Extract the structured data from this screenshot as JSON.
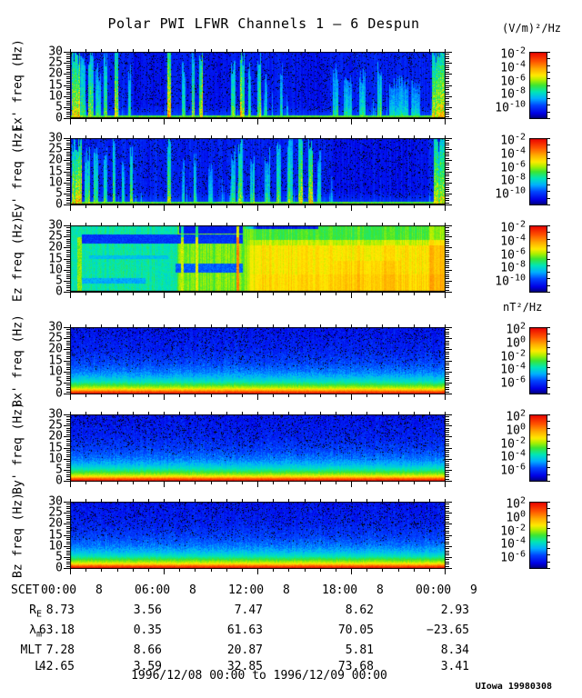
{
  "chart_data": {
    "type": "heatmap",
    "title": "Polar PWI LFWR Channels 1 — 6 Despun",
    "colorbar_base": "10",
    "units_electric": "(V/m)²/Hz",
    "units_magnetic": "nT²/Hz",
    "freq_axis": {
      "unit": "Hz",
      "range": [
        0,
        30
      ],
      "major_ticks": [
        30,
        25,
        20,
        15,
        10,
        5,
        0
      ],
      "minor_step": 1
    },
    "time_axis": {
      "label": "SCET",
      "hours_range": [
        0,
        24
      ],
      "major_step_hours": 6,
      "minor_step_hours": 1,
      "tick_labels": [
        {
          "time": "00:00",
          "day": "8"
        },
        {
          "time": "06:00",
          "day": "8"
        },
        {
          "time": "12:00",
          "day": "8"
        },
        {
          "time": "18:00",
          "day": "8"
        },
        {
          "time": "00:00",
          "day": "9"
        }
      ]
    },
    "b_profile": [
      [
        0,
        0.96
      ],
      [
        1,
        0.88
      ],
      [
        1.8,
        0.72
      ],
      [
        2.6,
        0.6
      ],
      [
        4,
        0.5
      ],
      [
        5.5,
        0.4
      ],
      [
        7.5,
        0.32
      ],
      [
        10,
        0.25
      ],
      [
        14,
        0.19
      ],
      [
        20,
        0.14
      ],
      [
        30,
        0.11
      ]
    ],
    "panels": [
      {
        "id": "ex",
        "ylabel": "Ex' freq (Hz)",
        "kind": "electric",
        "seed": 101,
        "colorbar": {
          "exponents": [
            "-2",
            "-4",
            "-6",
            "-8",
            "-10"
          ]
        },
        "streaks": [
          [
            0.005,
            0.02,
            0.9,
            1
          ],
          [
            0.028,
            0.012,
            0.6,
            0.85
          ],
          [
            0.05,
            0.012,
            0.7,
            0.95
          ],
          [
            0.07,
            0.01,
            0.5,
            0.7
          ],
          [
            0.09,
            0.008,
            0.6,
            0.9
          ],
          [
            0.12,
            0.006,
            0.9,
            1
          ],
          [
            0.155,
            0.006,
            0.55,
            0.7
          ],
          [
            0.26,
            0.007,
            0.85,
            1
          ],
          [
            0.3,
            0.006,
            0.5,
            0.75
          ],
          [
            0.325,
            0.005,
            0.7,
            0.95
          ],
          [
            0.345,
            0.008,
            0.9,
            1
          ],
          [
            0.43,
            0.01,
            0.6,
            0.85
          ],
          [
            0.455,
            0.008,
            0.85,
            1
          ],
          [
            0.475,
            0.006,
            0.5,
            0.7
          ],
          [
            0.5,
            0.008,
            0.7,
            0.9
          ],
          [
            0.52,
            0.005,
            0.45,
            0.6
          ],
          [
            0.56,
            0.005,
            0.5,
            0.8
          ],
          [
            0.7,
            0.012,
            0.5,
            0.7
          ],
          [
            0.73,
            0.02,
            0.45,
            0.6
          ],
          [
            0.77,
            0.015,
            0.5,
            0.65
          ],
          [
            0.82,
            0.01,
            0.55,
            0.8
          ],
          [
            0.85,
            0.05,
            0.4,
            0.55
          ],
          [
            0.91,
            0.02,
            0.35,
            0.5
          ],
          [
            0.965,
            0.035,
            0.85,
            1
          ]
        ],
        "dark_zones": [
          [
            0.17,
            0.25
          ],
          [
            0.37,
            0.42
          ],
          [
            0.6,
            0.69
          ]
        ]
      },
      {
        "id": "ey",
        "ylabel": "Ey' freq (Hz)",
        "kind": "electric",
        "seed": 202,
        "colorbar": {
          "exponents": [
            "-2",
            "-4",
            "-6",
            "-8",
            "-10"
          ]
        },
        "streaks": [
          [
            0.005,
            0.025,
            0.85,
            1
          ],
          [
            0.04,
            0.012,
            0.6,
            0.8
          ],
          [
            0.065,
            0.01,
            0.55,
            0.75
          ],
          [
            0.09,
            0.008,
            0.5,
            0.8
          ],
          [
            0.115,
            0.006,
            0.6,
            0.9
          ],
          [
            0.14,
            0.005,
            0.45,
            0.6
          ],
          [
            0.16,
            0.005,
            0.65,
            0.9
          ],
          [
            0.26,
            0.007,
            0.7,
            1
          ],
          [
            0.3,
            0.005,
            0.45,
            0.65
          ],
          [
            0.33,
            0.005,
            0.5,
            0.7
          ],
          [
            0.37,
            0.008,
            0.4,
            0.55
          ],
          [
            0.43,
            0.01,
            0.55,
            0.8
          ],
          [
            0.45,
            0.008,
            0.65,
            0.9
          ],
          [
            0.48,
            0.01,
            0.5,
            0.7
          ],
          [
            0.52,
            0.012,
            0.55,
            0.75
          ],
          [
            0.55,
            0.01,
            0.6,
            0.85
          ],
          [
            0.58,
            0.012,
            0.65,
            0.9
          ],
          [
            0.61,
            0.008,
            0.75,
            1
          ],
          [
            0.635,
            0.01,
            0.9,
            1
          ],
          [
            0.66,
            0.006,
            0.6,
            0.8
          ],
          [
            0.97,
            0.03,
            0.9,
            1
          ]
        ],
        "dark_zones": [
          [
            0.7,
            0.95
          ]
        ]
      },
      {
        "id": "ez",
        "ylabel": "Ez freq (Hz)",
        "kind": "ez",
        "seed": 303,
        "colorbar": {
          "exponents": [
            "-2",
            "-4",
            "-6",
            "-8",
            "-10"
          ]
        },
        "regions": {
          "a_end": 0.285,
          "b_end": 0.46,
          "base_a": 0.41,
          "base_b": 0.53,
          "base_c": 0.66,
          "bands": [
            [
              0.03,
              0.46,
              22,
              26,
              0.17
            ],
            [
              0.28,
              0.5,
              9,
              13,
              0.22
            ],
            [
              0.02,
              0.2,
              4,
              6.5,
              0.3
            ],
            [
              0.05,
              0.26,
              15,
              16.5,
              0.33
            ]
          ],
          "lines": [
            [
              0.018,
              0.012,
              0.55
            ],
            [
              0.295,
              0.006,
              0.6
            ],
            [
              0.332,
              0.007,
              0.62
            ],
            [
              0.443,
              0.007,
              0.8
            ]
          ],
          "top_dark": [
            0.29,
            0.66,
            26.5,
            0.13
          ],
          "c_top_green": [
            23.5,
            28.5,
            0.5
          ],
          "c_mid_yellow": [
            21,
            23.5,
            0.6
          ],
          "bright_right": 0.955
        }
      },
      {
        "id": "bx",
        "ylabel": "Bx' freq (Hz)",
        "kind": "magnetic",
        "seed": 404,
        "colorbar": {
          "exponents": [
            "2",
            "0",
            "-2",
            "-4",
            "-6"
          ]
        }
      },
      {
        "id": "by",
        "ylabel": "By' freq (Hz)",
        "kind": "magnetic",
        "seed": 505,
        "colorbar": {
          "exponents": [
            "2",
            "0",
            "-2",
            "-4",
            "-6"
          ]
        }
      },
      {
        "id": "bz",
        "ylabel": "Bz freq (Hz)",
        "kind": "magnetic",
        "seed": 606,
        "colorbar": {
          "exponents": [
            "2",
            "0",
            "-2",
            "-4",
            "-6"
          ]
        }
      }
    ],
    "ephemeris": {
      "rows": [
        {
          "name": "R",
          "sub": "E",
          "values": [
            "8.73",
            "3.56",
            "7.47",
            "8.62",
            "2.93"
          ]
        },
        {
          "name": "λ",
          "sub": "m",
          "values": [
            "63.18",
            "0.35",
            "61.63",
            "70.05",
            "−23.65"
          ]
        },
        {
          "name": "MLT",
          "sub": "",
          "values": [
            "7.28",
            "8.66",
            "20.87",
            "5.81",
            "8.34"
          ]
        },
        {
          "name": "L",
          "sub": "",
          "values": [
            "42.65",
            "3.59",
            "32.85",
            "73.68",
            "3.41"
          ]
        }
      ]
    },
    "footer": "1996/12/08 00:00 to 1996/12/09 00:00",
    "credit": "UIowa 19980308"
  }
}
